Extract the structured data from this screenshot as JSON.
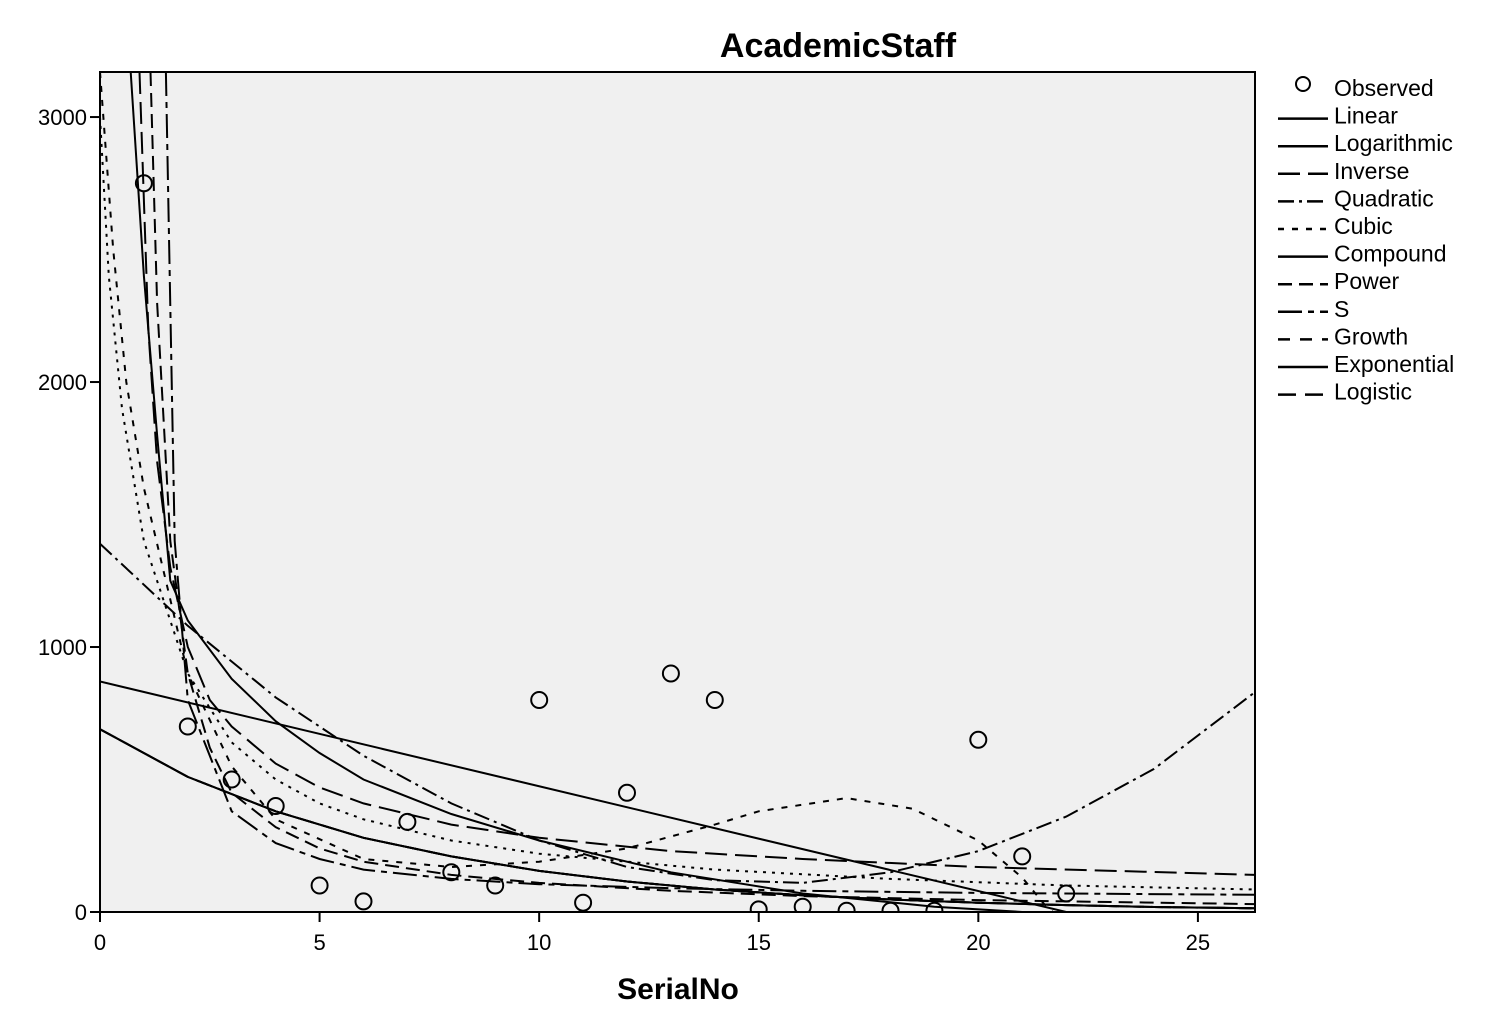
{
  "chart_data": {
    "type": "scatter",
    "title": "AcademicStaff",
    "xlabel": "SerialNo",
    "ylabel": "",
    "xlim": [
      0,
      26.3
    ],
    "ylim": [
      0,
      3170
    ],
    "x_ticks": [
      0,
      5,
      10,
      15,
      20,
      25
    ],
    "y_ticks": [
      0,
      1000,
      2000,
      3000
    ],
    "grid": false,
    "legend_position": "right",
    "legend": [
      "Observed",
      "Linear",
      "Logarithmic",
      "Inverse",
      "Quadratic",
      "Cubic",
      "Compound",
      "Power",
      "S",
      "Growth",
      "Exponential",
      "Logistic"
    ],
    "observed": [
      {
        "x": 1,
        "y": 2750
      },
      {
        "x": 2,
        "y": 700
      },
      {
        "x": 3,
        "y": 500
      },
      {
        "x": 4,
        "y": 400
      },
      {
        "x": 5,
        "y": 100
      },
      {
        "x": 6,
        "y": 40
      },
      {
        "x": 7,
        "y": 340
      },
      {
        "x": 8,
        "y": 150
      },
      {
        "x": 9,
        "y": 100
      },
      {
        "x": 10,
        "y": 800
      },
      {
        "x": 11,
        "y": 35
      },
      {
        "x": 12,
        "y": 450
      },
      {
        "x": 13,
        "y": 900
      },
      {
        "x": 14,
        "y": 800
      },
      {
        "x": 15,
        "y": 10
      },
      {
        "x": 16,
        "y": 20
      },
      {
        "x": 17,
        "y": 5
      },
      {
        "x": 18,
        "y": 5
      },
      {
        "x": 19,
        "y": 5
      },
      {
        "x": 20,
        "y": 650
      },
      {
        "x": 21,
        "y": 210
      },
      {
        "x": 22,
        "y": 70
      }
    ],
    "fitted_curves": [
      {
        "name": "Linear",
        "dash": "",
        "points": [
          [
            0,
            870
          ],
          [
            22,
            0
          ]
        ]
      },
      {
        "name": "Logarithmic",
        "dash": "",
        "points": [
          [
            0.7,
            3170
          ],
          [
            1.0,
            2400
          ],
          [
            1.3,
            1800
          ],
          [
            1.6,
            1250
          ],
          [
            2,
            1100
          ],
          [
            3,
            880
          ],
          [
            4,
            720
          ],
          [
            5,
            600
          ],
          [
            6,
            500
          ],
          [
            8,
            370
          ],
          [
            10,
            270
          ],
          [
            13,
            150
          ],
          [
            16,
            70
          ],
          [
            19,
            20
          ],
          [
            21,
            0
          ]
        ]
      },
      {
        "name": "Inverse",
        "dash": "22,8",
        "points": [
          [
            0.9,
            3170
          ],
          [
            1.1,
            2200
          ],
          [
            1.3,
            1700
          ],
          [
            1.6,
            1300
          ],
          [
            2,
            1000
          ],
          [
            2.5,
            800
          ],
          [
            3,
            700
          ],
          [
            4,
            560
          ],
          [
            5,
            470
          ],
          [
            6,
            410
          ],
          [
            8,
            330
          ],
          [
            10,
            280
          ],
          [
            13,
            230
          ],
          [
            16,
            200
          ],
          [
            20,
            170
          ],
          [
            26.3,
            140
          ]
        ]
      },
      {
        "name": "Quadratic",
        "dash": "16,5,3,5",
        "points": [
          [
            0,
            1390
          ],
          [
            2,
            1080
          ],
          [
            4,
            810
          ],
          [
            6,
            590
          ],
          [
            8,
            410
          ],
          [
            10,
            270
          ],
          [
            12,
            170
          ],
          [
            14,
            120
          ],
          [
            16,
            110
          ],
          [
            18,
            150
          ],
          [
            20,
            230
          ],
          [
            22,
            360
          ],
          [
            24,
            540
          ],
          [
            26.3,
            830
          ]
        ]
      },
      {
        "name": "Cubic",
        "dash": "6,8",
        "points": [
          [
            0,
            3170
          ],
          [
            0.3,
            2500
          ],
          [
            0.6,
            2000
          ],
          [
            1,
            1600
          ],
          [
            2,
            900
          ],
          [
            3,
            550
          ],
          [
            4,
            350
          ],
          [
            6,
            200
          ],
          [
            8,
            170
          ],
          [
            10,
            190
          ],
          [
            12,
            240
          ],
          [
            14,
            330
          ],
          [
            15,
            380
          ],
          [
            17,
            430
          ],
          [
            18.5,
            390
          ],
          [
            20,
            270
          ],
          [
            21,
            130
          ],
          [
            21.5,
            30
          ],
          [
            21.7,
            0
          ]
        ]
      },
      {
        "name": "Compound",
        "dash": "",
        "points": [
          [
            0,
            690
          ],
          [
            2,
            510
          ],
          [
            4,
            380
          ],
          [
            6,
            280
          ],
          [
            8,
            210
          ],
          [
            10,
            155
          ],
          [
            12,
            115
          ],
          [
            14,
            85
          ],
          [
            16,
            63
          ],
          [
            18,
            47
          ],
          [
            20,
            35
          ],
          [
            22,
            26
          ],
          [
            24,
            19
          ],
          [
            26.3,
            14
          ]
        ]
      },
      {
        "name": "Power",
        "dash": "14,7",
        "points": [
          [
            1.15,
            3170
          ],
          [
            1.3,
            2300
          ],
          [
            1.6,
            1400
          ],
          [
            2,
            900
          ],
          [
            2.5,
            620
          ],
          [
            3,
            450
          ],
          [
            4,
            320
          ],
          [
            5,
            240
          ],
          [
            6,
            190
          ],
          [
            8,
            140
          ],
          [
            10,
            110
          ],
          [
            13,
            80
          ],
          [
            16,
            60
          ],
          [
            20,
            45
          ],
          [
            26.3,
            30
          ]
        ]
      },
      {
        "name": "S",
        "dash": "24,6,6,6",
        "points": [
          [
            1.5,
            3170
          ],
          [
            1.7,
            1400
          ],
          [
            2,
            800
          ],
          [
            3,
            380
          ],
          [
            4,
            260
          ],
          [
            5,
            200
          ],
          [
            6,
            160
          ],
          [
            8,
            125
          ],
          [
            10,
            105
          ],
          [
            13,
            90
          ],
          [
            16,
            80
          ],
          [
            20,
            72
          ],
          [
            26.3,
            65
          ]
        ]
      },
      {
        "name": "Growth",
        "dash": "12,10",
        "points": [
          [
            0,
            690
          ],
          [
            2,
            510
          ],
          [
            4,
            380
          ],
          [
            6,
            280
          ],
          [
            8,
            210
          ],
          [
            10,
            155
          ],
          [
            12,
            115
          ],
          [
            14,
            85
          ],
          [
            16,
            63
          ],
          [
            18,
            47
          ],
          [
            20,
            35
          ],
          [
            22,
            26
          ],
          [
            24,
            19
          ],
          [
            26.3,
            14
          ]
        ]
      },
      {
        "name": "Exponential",
        "dash": "",
        "points": [
          [
            0,
            690
          ],
          [
            2,
            510
          ],
          [
            4,
            380
          ],
          [
            6,
            280
          ],
          [
            8,
            210
          ],
          [
            10,
            155
          ],
          [
            12,
            115
          ],
          [
            14,
            85
          ],
          [
            16,
            63
          ],
          [
            18,
            47
          ],
          [
            20,
            35
          ],
          [
            22,
            26
          ],
          [
            24,
            19
          ],
          [
            26.3,
            14
          ]
        ]
      },
      {
        "name": "Logistic",
        "dash": "18,9",
        "points": [
          [
            0,
            690
          ],
          [
            2,
            510
          ],
          [
            4,
            380
          ],
          [
            6,
            280
          ],
          [
            8,
            210
          ],
          [
            10,
            155
          ],
          [
            12,
            115
          ],
          [
            14,
            85
          ],
          [
            16,
            63
          ],
          [
            18,
            47
          ],
          [
            20,
            35
          ],
          [
            22,
            26
          ],
          [
            24,
            19
          ],
          [
            26.3,
            14
          ]
        ]
      },
      {
        "name": "",
        "dash": "3,6",
        "points": [
          [
            0,
            3000
          ],
          [
            0.2,
            2400
          ],
          [
            0.5,
            1900
          ],
          [
            1,
            1400
          ],
          [
            2,
            900
          ],
          [
            3,
            640
          ],
          [
            4,
            500
          ],
          [
            5,
            410
          ],
          [
            6,
            350
          ],
          [
            8,
            270
          ],
          [
            10,
            220
          ],
          [
            14,
            160
          ],
          [
            18,
            125
          ],
          [
            22,
            100
          ],
          [
            26.3,
            85
          ]
        ]
      }
    ]
  }
}
